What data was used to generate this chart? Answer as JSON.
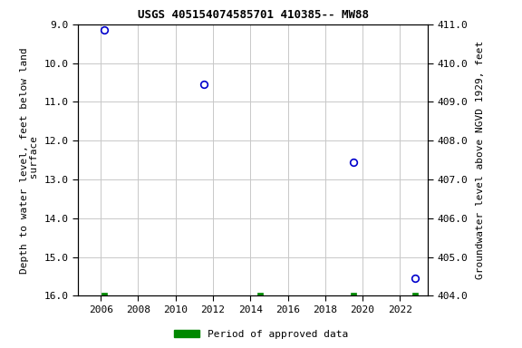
{
  "title": "USGS 405154074585701 410385-- MW88",
  "xlabel_years": [
    2006,
    2008,
    2010,
    2012,
    2014,
    2016,
    2018,
    2020,
    2022
  ],
  "xlim": [
    2004.8,
    2023.5
  ],
  "ylim_left": [
    16.0,
    9.0
  ],
  "ylim_right": [
    404.0,
    411.0
  ],
  "yticks_left": [
    9.0,
    10.0,
    11.0,
    12.0,
    13.0,
    14.0,
    15.0,
    16.0
  ],
  "yticks_right": [
    404.0,
    405.0,
    406.0,
    407.0,
    408.0,
    409.0,
    410.0,
    411.0
  ],
  "ylabel_left": "Depth to water level, feet below land\n surface",
  "ylabel_right": "Groundwater level above NGVD 1929, feet",
  "blue_points_x": [
    2006.2,
    2011.5,
    2019.5,
    2022.8
  ],
  "blue_points_y": [
    9.15,
    10.55,
    12.55,
    15.55
  ],
  "green_points_x": [
    2006.2,
    2014.5,
    2019.5,
    2022.8
  ],
  "green_points_y": [
    16.0,
    16.0,
    16.0,
    16.0
  ],
  "point_color": "#0000cc",
  "green_color": "#008800",
  "background_color": "#ffffff",
  "grid_color": "#c8c8c8",
  "legend_label": "Period of approved data",
  "font_family": "monospace",
  "title_fontsize": 9,
  "tick_fontsize": 8,
  "label_fontsize": 8
}
